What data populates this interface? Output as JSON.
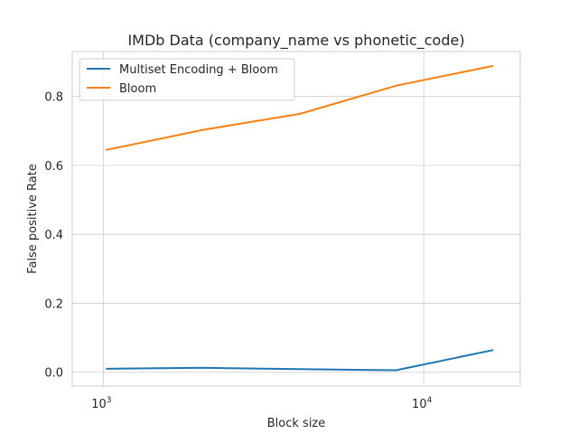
{
  "chart_data": {
    "type": "line",
    "title": "IMDb Data (company_name vs phonetic_code)",
    "xlabel": "Block size",
    "ylabel": "False positive Rate",
    "xscale": "log",
    "x": [
      1024,
      2048,
      4096,
      8192,
      16384
    ],
    "xlim": [
      800,
      20000
    ],
    "ylim": [
      -0.04,
      0.93
    ],
    "xticks": [
      {
        "value": 1000,
        "base": "10",
        "exp": "3"
      },
      {
        "value": 10000,
        "base": "10",
        "exp": "4"
      }
    ],
    "yticks": [
      {
        "value": 0.0,
        "label": "0.0"
      },
      {
        "value": 0.2,
        "label": "0.2"
      },
      {
        "value": 0.4,
        "label": "0.4"
      },
      {
        "value": 0.6,
        "label": "0.6"
      },
      {
        "value": 0.8,
        "label": "0.8"
      }
    ],
    "grid": true,
    "legend_position": "upper left",
    "series": [
      {
        "name": "Multiset Encoding + Bloom",
        "color": "#1f77b4",
        "values": [
          0.01,
          0.013,
          0.009,
          0.006,
          0.064
        ]
      },
      {
        "name": "Bloom",
        "color": "#ff7f0e",
        "values": [
          0.645,
          0.703,
          0.749,
          0.831,
          0.888
        ]
      }
    ]
  }
}
